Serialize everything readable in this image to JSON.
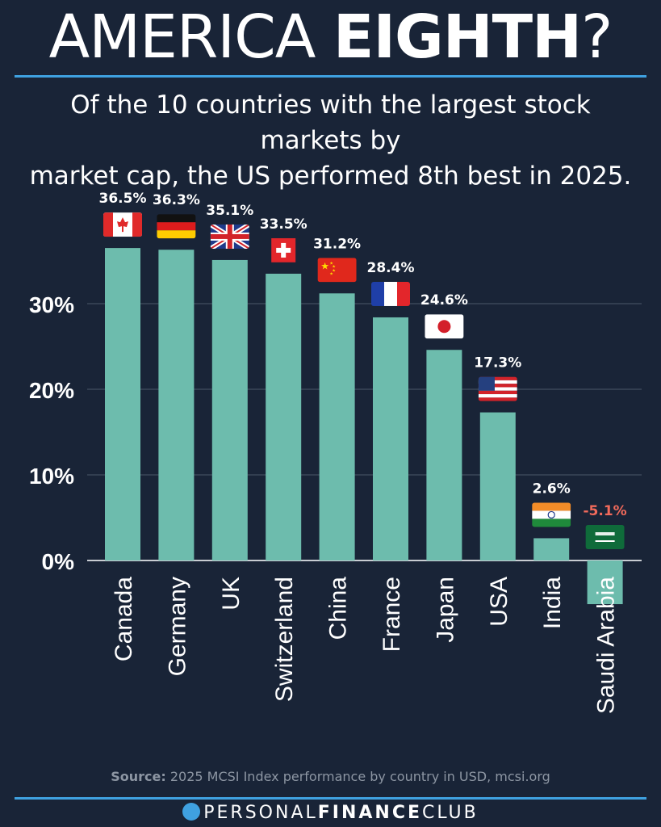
{
  "header": {
    "title_light": "AMERICA ",
    "title_bold": "EIGHTH",
    "title_end": "?",
    "subtitle_line1": "Of the 10 countries with the largest stock markets by",
    "subtitle_line2": "market cap, the US performed 8th best in 2025."
  },
  "colors": {
    "background": "#192437",
    "bar": "#6dbcad",
    "accent": "#3fa1e0",
    "negative_label": "#f26a5b",
    "grid": "#3a4658"
  },
  "chart_data": {
    "type": "bar",
    "title": "Of the 10 countries with the largest stock markets by market cap, the US performed 8th best in 2025.",
    "xlabel": "",
    "ylabel": "",
    "ylim": [
      -6,
      40
    ],
    "yticks": [
      0,
      10,
      20,
      30
    ],
    "ytick_labels": [
      "0%",
      "10%",
      "20%",
      "30%"
    ],
    "grid": true,
    "categories": [
      "Canada",
      "Germany",
      "UK",
      "Switzerland",
      "China",
      "France",
      "Japan",
      "USA",
      "India",
      "Saudi Arabia"
    ],
    "values": [
      36.5,
      36.3,
      35.1,
      33.5,
      31.2,
      28.4,
      24.6,
      17.3,
      2.6,
      -5.1
    ],
    "value_labels": [
      "36.5%",
      "36.3%",
      "35.1%",
      "33.5%",
      "31.2%",
      "28.4%",
      "24.6%",
      "17.3%",
      "2.6%",
      "-5.1%"
    ],
    "flags": [
      "canada-flag",
      "germany-flag",
      "uk-flag",
      "switzerland-flag",
      "china-flag",
      "france-flag",
      "japan-flag",
      "usa-flag",
      "india-flag",
      "saudi-arabia-flag"
    ]
  },
  "footer": {
    "source_label": "Source:",
    "source_text": " 2025 MCSI Index performance by country in USD, mcsi.org",
    "brand_part1": "PERSONAL",
    "brand_part2": "FINANCE",
    "brand_part3": "CLUB"
  }
}
